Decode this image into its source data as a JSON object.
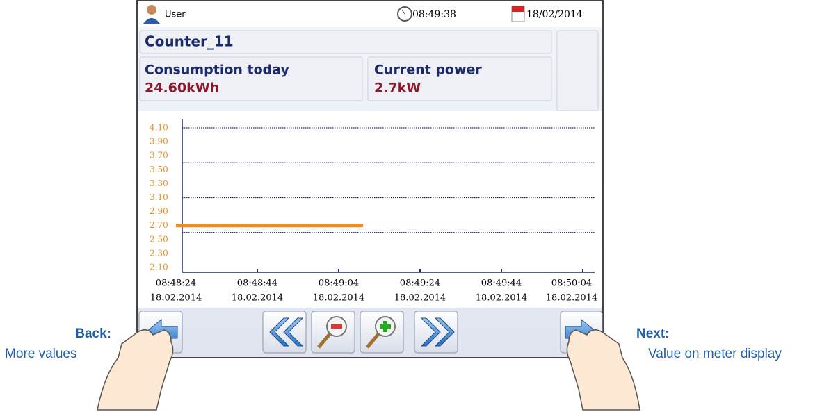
{
  "status_bar": {
    "user": "User",
    "time": "08:49:38",
    "date": "18/02/2014"
  },
  "meter": {
    "name": "Counter_11",
    "tiles": [
      {
        "label": "Consumption today",
        "value": "24.60kWh"
      },
      {
        "label": "Current power",
        "value": "2.7kW"
      }
    ]
  },
  "chart": {
    "type": "line",
    "ylim": [
      2.1,
      4.1
    ],
    "yticks": [
      {
        "value": 2.1,
        "label": "2.10"
      },
      {
        "value": 2.3,
        "label": "2.30"
      },
      {
        "value": 2.5,
        "label": "2.50"
      },
      {
        "value": 2.7,
        "label": "2.70"
      },
      {
        "value": 2.9,
        "label": "2.90"
      },
      {
        "value": 3.1,
        "label": "3.10"
      },
      {
        "value": 3.3,
        "label": "3.30"
      },
      {
        "value": 3.5,
        "label": "3.50"
      },
      {
        "value": 3.7,
        "label": "3.70"
      },
      {
        "value": 3.9,
        "label": "3.90"
      },
      {
        "value": 4.1,
        "label": "4.10"
      }
    ],
    "grid_lines": [
      2.6,
      3.1,
      3.6,
      4.1
    ],
    "xticks": [
      {
        "time": "08:48:24",
        "date": "18.02.2014"
      },
      {
        "time": "08:48:44",
        "date": "18.02.2014"
      },
      {
        "time": "08:49:04",
        "date": "18.02.2014"
      },
      {
        "time": "08:49:24",
        "date": "18.02.2014"
      },
      {
        "time": "08:49:44",
        "date": "18.02.2014"
      },
      {
        "time": "08:50:04",
        "date": "18.02.2014"
      }
    ],
    "series": [
      {
        "color": "#f28c1e",
        "x": [
          "08:48:24",
          "08:49:10"
        ],
        "values": [
          2.7,
          2.7
        ]
      }
    ]
  },
  "annotations": {
    "back": {
      "title": "Back:",
      "text": "More values"
    },
    "next": {
      "title": "Next:",
      "text": "Value on meter display"
    }
  }
}
